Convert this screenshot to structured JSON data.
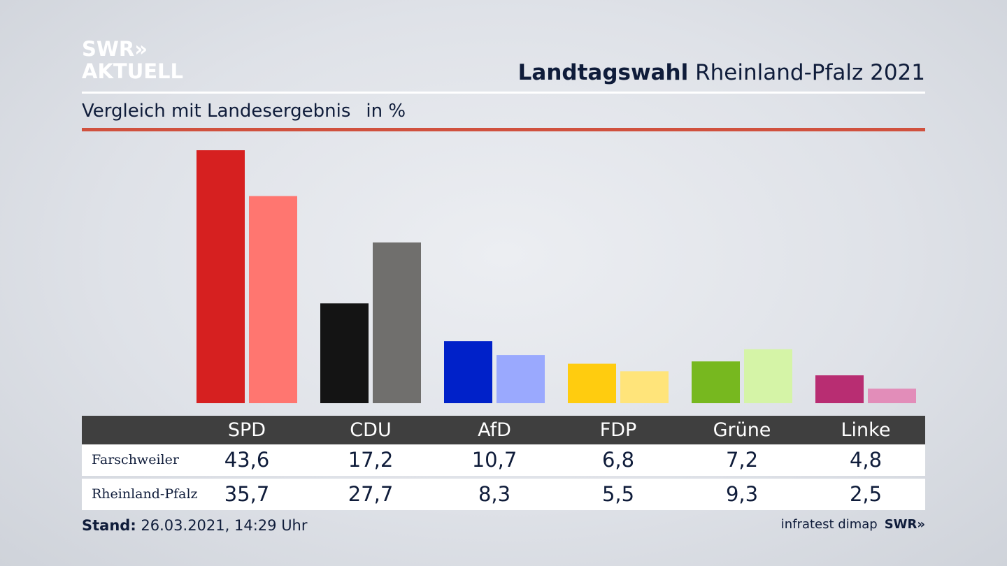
{
  "logo": {
    "line1": "SWR»",
    "line2": "AKTUELL"
  },
  "header": {
    "title_bold": "Landtagswahl",
    "title_rest": "Rheinland-Pfalz 2021"
  },
  "subheader": {
    "text": "Vergleich mit Landesergebnis",
    "unit": "in %"
  },
  "chart_data": {
    "type": "bar",
    "title": "Landtagswahl Rheinland-Pfalz 2021",
    "subtitle": "Vergleich mit Landesergebnis in %",
    "categories": [
      "SPD",
      "CDU",
      "AfD",
      "FDP",
      "Grüne",
      "Linke"
    ],
    "series": [
      {
        "name": "Farschweiler",
        "values": [
          43.6,
          17.2,
          10.7,
          6.8,
          7.2,
          4.8
        ],
        "value_labels": [
          "43,6",
          "17,2",
          "10,7",
          "6,8",
          "7,2",
          "4,8"
        ]
      },
      {
        "name": "Rheinland-Pfalz",
        "values": [
          35.7,
          27.7,
          8.3,
          5.5,
          9.3,
          2.5
        ],
        "value_labels": [
          "35,7",
          "27,7",
          "8,3",
          "5,5",
          "9,3",
          "2,5"
        ]
      }
    ],
    "colors": {
      "Farschweiler": [
        "#d62020",
        "#141414",
        "#0021c9",
        "#ffcc0f",
        "#77b81f",
        "#b82d72"
      ],
      "Rheinland-Pfalz": [
        "#ff7670",
        "#706f6d",
        "#9aa9fe",
        "#ffe47a",
        "#d5f4a7",
        "#e28db9"
      ]
    },
    "ylim": [
      0,
      43.6
    ],
    "grid": false,
    "legend": "table-below"
  },
  "footer": {
    "stand_label": "Stand:",
    "stand_value": "26.03.2021, 14:29 Uhr",
    "source": "infratest dimap",
    "brand": "SWR»"
  }
}
